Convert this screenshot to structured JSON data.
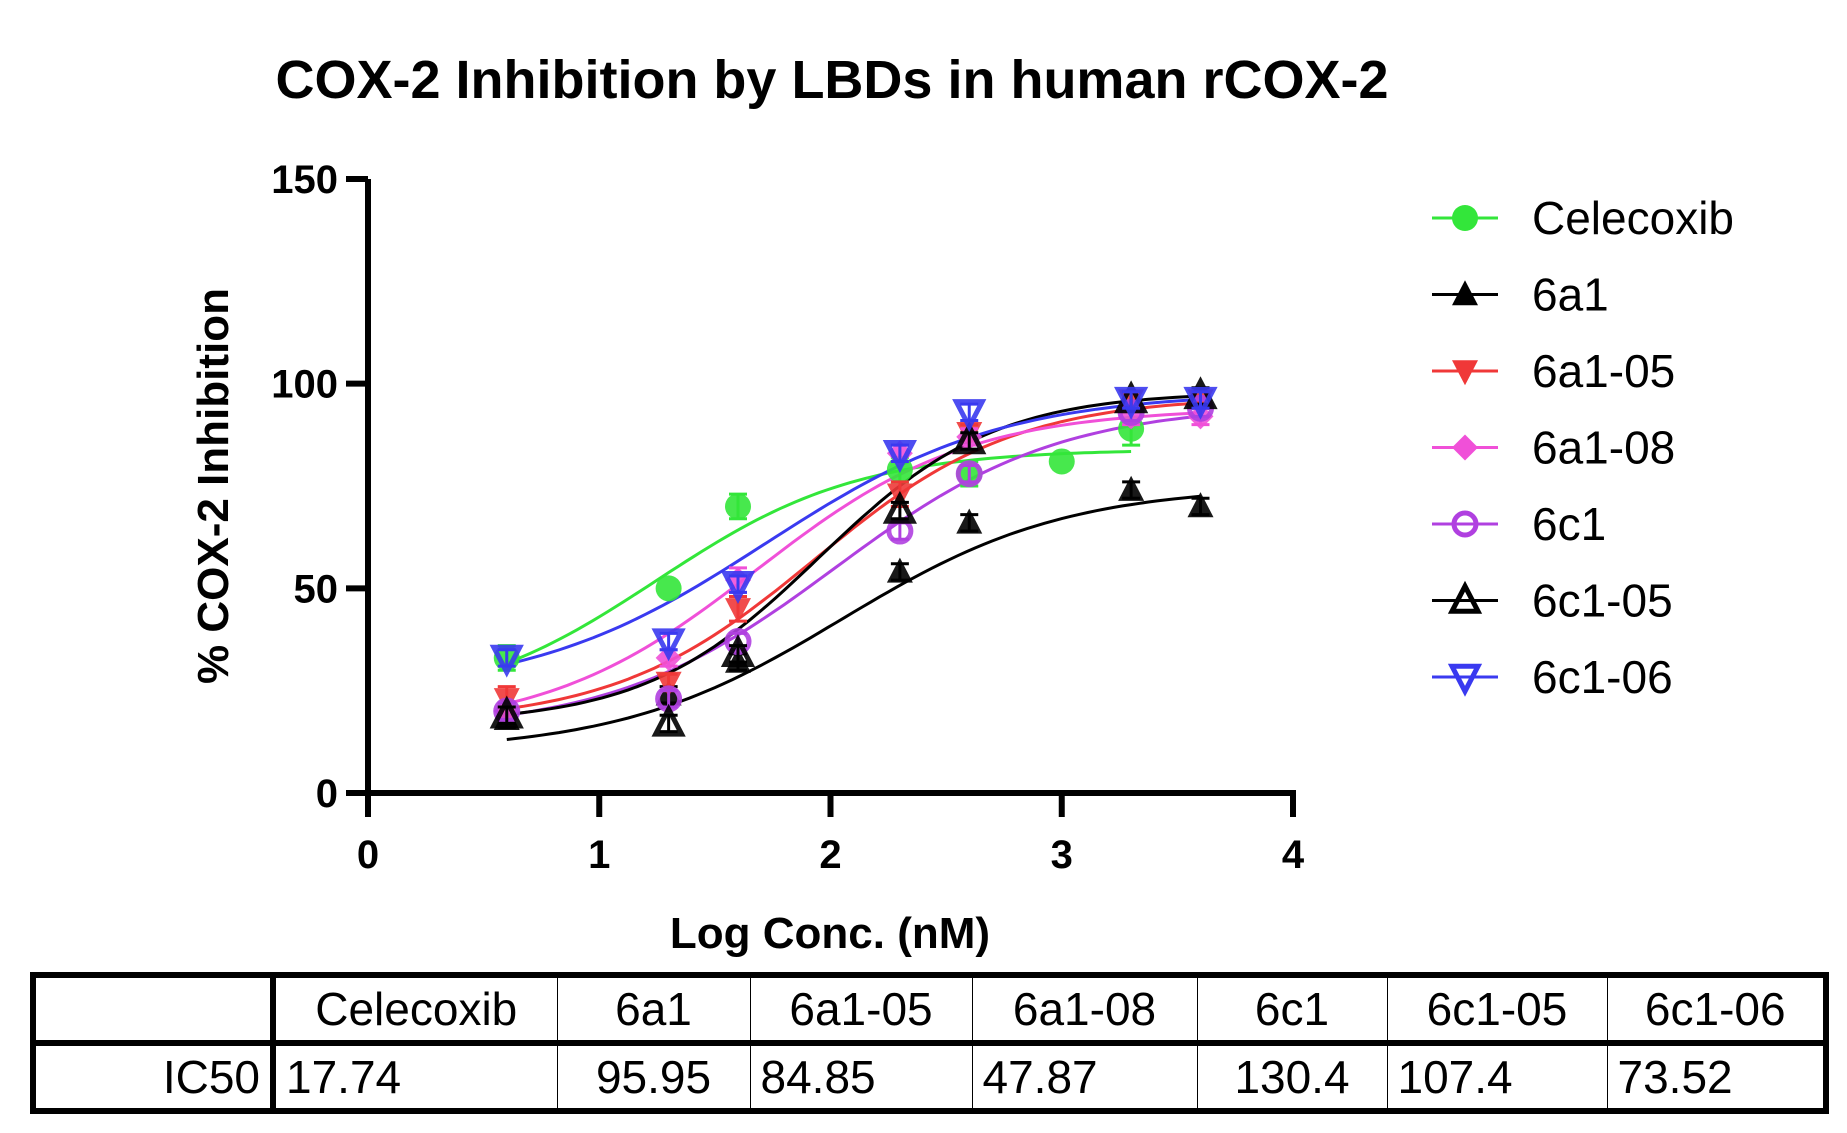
{
  "chart_data": {
    "type": "scatter",
    "title": "COX-2 Inhibition by LBDs in human rCOX-2",
    "xlabel": "Log Conc. (nM)",
    "ylabel": "% COX-2 Inhibition",
    "xlim": [
      0,
      4
    ],
    "ylim": [
      0,
      150
    ],
    "xticks": [
      0,
      1,
      2,
      3,
      4
    ],
    "yticks": [
      0,
      50,
      100,
      150
    ],
    "grid": false,
    "legend_position": "right",
    "fit": "sigmoidal dose-response (4PL), visually estimated",
    "series": [
      {
        "name": "Celecoxib",
        "color": "#33e63a",
        "marker": "circle-filled",
        "x": [
          0.6,
          1.3,
          1.6,
          2.3,
          2.6,
          3.0,
          3.3
        ],
        "y": [
          33,
          50,
          70,
          79,
          78,
          81,
          89
        ],
        "error": [
          3,
          0,
          3,
          3,
          3,
          0,
          4
        ],
        "curve": {
          "bottom": 20,
          "top": 84,
          "log_ec50": 1.25,
          "hill": 1.0,
          "x_range": [
            0.6,
            3.3
          ]
        }
      },
      {
        "name": "6a1",
        "color": "#000000",
        "marker": "triangle-up-filled",
        "x": [
          0.6,
          1.3,
          1.6,
          2.3,
          2.6,
          3.3,
          3.6
        ],
        "y": [
          18,
          24,
          32,
          54,
          66,
          74,
          70
        ],
        "error": [
          2,
          2,
          2,
          2,
          2,
          2,
          2
        ],
        "curve": {
          "bottom": 10,
          "top": 75,
          "log_ec50": 2.05,
          "hill": 0.9,
          "x_range": [
            0.6,
            3.6
          ]
        }
      },
      {
        "name": "6a1-05",
        "color": "#f03838",
        "marker": "triangle-down-filled",
        "x": [
          0.6,
          1.3,
          1.6,
          2.3,
          2.6,
          3.3,
          3.6
        ],
        "y": [
          23,
          27,
          45,
          73,
          88,
          96,
          96
        ],
        "error": [
          3,
          2,
          3,
          3,
          2,
          2,
          2
        ],
        "curve": {
          "bottom": 17,
          "top": 97,
          "log_ec50": 1.93,
          "hill": 1.0,
          "x_range": [
            0.6,
            3.6
          ]
        }
      },
      {
        "name": "6a1-08",
        "color": "#f050d8",
        "marker": "diamond-filled",
        "x": [
          0.6,
          1.3,
          1.6,
          2.3,
          2.6,
          3.3,
          3.6
        ],
        "y": [
          20,
          33,
          52,
          83,
          87,
          92,
          92
        ],
        "error": [
          2,
          2,
          3,
          2,
          2,
          2,
          2
        ],
        "curve": {
          "bottom": 15,
          "top": 94,
          "log_ec50": 1.68,
          "hill": 0.95,
          "x_range": [
            0.6,
            3.6
          ]
        }
      },
      {
        "name": "6c1",
        "color": "#b040e0",
        "marker": "circle-open",
        "x": [
          0.6,
          1.3,
          1.6,
          2.3,
          2.6,
          3.3,
          3.6
        ],
        "y": [
          20,
          23,
          37,
          64,
          78,
          93,
          94
        ],
        "error": [
          2,
          2,
          2,
          2,
          2,
          2,
          2
        ],
        "curve": {
          "bottom": 15,
          "top": 95,
          "log_ec50": 2.02,
          "hill": 0.9,
          "x_range": [
            0.6,
            3.6
          ]
        }
      },
      {
        "name": "6c1-05",
        "color": "#000000",
        "marker": "triangle-up-open",
        "x": [
          0.6,
          1.3,
          1.6,
          2.3,
          2.6,
          3.3,
          3.6
        ],
        "y": [
          19,
          17,
          34,
          69,
          86,
          96,
          97
        ],
        "error": [
          2,
          2,
          2,
          2,
          2,
          2,
          2
        ],
        "curve": {
          "bottom": 17,
          "top": 98,
          "log_ec50": 1.95,
          "hill": 1.15,
          "x_range": [
            0.6,
            3.6
          ]
        }
      },
      {
        "name": "6c1-06",
        "color": "#3a3af0",
        "marker": "triangle-down-open",
        "x": [
          0.6,
          1.3,
          1.6,
          2.3,
          2.6,
          3.3,
          3.6
        ],
        "y": [
          33,
          37,
          51,
          83,
          93,
          96,
          96
        ],
        "error": [
          2,
          2,
          2,
          2,
          2,
          2,
          2
        ],
        "curve": {
          "bottom": 24,
          "top": 98,
          "log_ec50": 1.72,
          "hill": 0.85,
          "x_range": [
            0.6,
            3.6
          ]
        }
      }
    ]
  },
  "table": {
    "headers": [
      "",
      "Celecoxib",
      "6a1",
      "6a1-05",
      "6a1-08",
      "6c1",
      "6c1-05",
      "6c1-06"
    ],
    "rows": [
      {
        "label": "IC50",
        "values": [
          "17.74",
          "95.95",
          "84.85",
          "47.87",
          "130.4",
          "107.4",
          "73.52"
        ]
      }
    ]
  }
}
